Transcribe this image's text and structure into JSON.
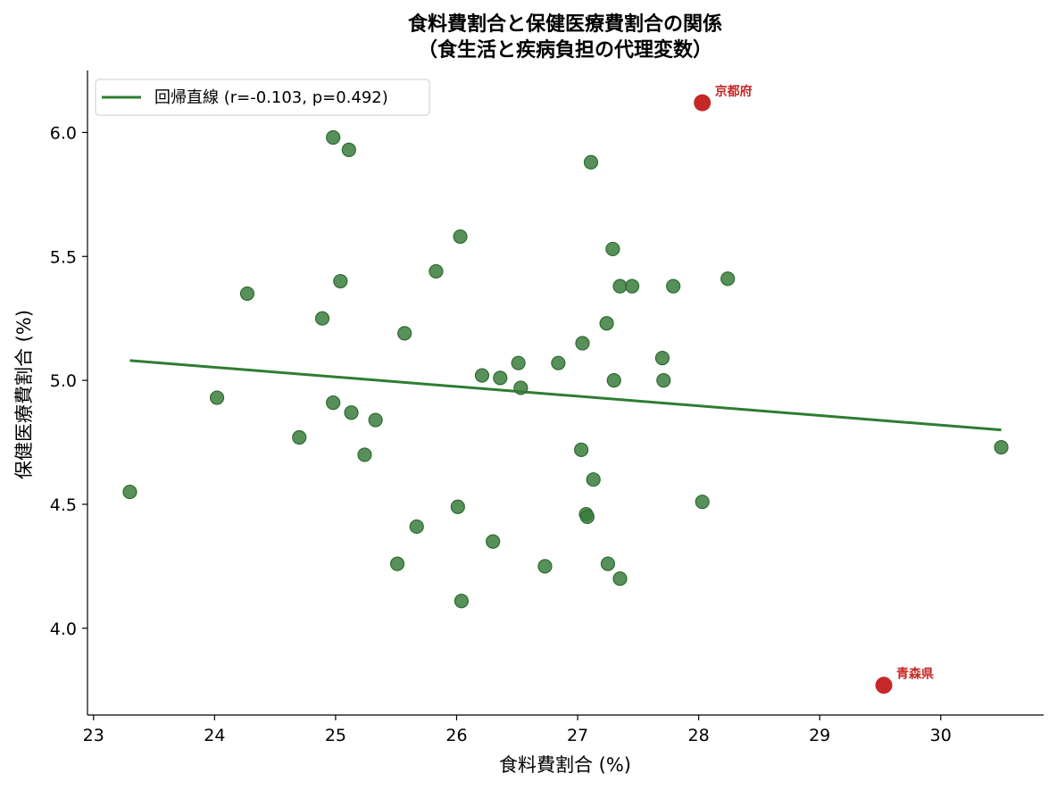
{
  "chart_data": {
    "type": "scatter",
    "title_line1": "食料費割合と保健医療費割合の関係",
    "title_line2": "（食生活と疾病負担の代理変数）",
    "xlabel": "食料費割合 (%)",
    "ylabel": "保健医療費割合 (%)",
    "xlim": [
      22.95,
      30.85
    ],
    "ylim": [
      3.65,
      6.25
    ],
    "xticks": [
      23,
      24,
      25,
      26,
      27,
      28,
      29,
      30
    ],
    "yticks": [
      4.0,
      4.5,
      5.0,
      5.5,
      6.0
    ],
    "ytick_labels": [
      "4.0",
      "4.5",
      "5.0",
      "5.5",
      "6.0"
    ],
    "grid": false,
    "legend_position": "top-left",
    "colors": {
      "points": "#3a7d3c",
      "line": "#2e7d32",
      "highlight": "#c62828"
    },
    "regression": {
      "label": "回帰直線 (r=-0.103, p=0.492)",
      "x": [
        23.3,
        30.5
      ],
      "y": [
        5.08,
        4.8
      ]
    },
    "points": [
      {
        "x": 23.3,
        "y": 4.55
      },
      {
        "x": 24.02,
        "y": 4.93
      },
      {
        "x": 24.27,
        "y": 5.35
      },
      {
        "x": 24.7,
        "y": 4.77
      },
      {
        "x": 24.89,
        "y": 5.25
      },
      {
        "x": 24.98,
        "y": 5.98
      },
      {
        "x": 24.98,
        "y": 4.91
      },
      {
        "x": 25.04,
        "y": 5.4
      },
      {
        "x": 25.11,
        "y": 5.93
      },
      {
        "x": 25.13,
        "y": 4.87
      },
      {
        "x": 25.24,
        "y": 4.7
      },
      {
        "x": 25.33,
        "y": 4.84
      },
      {
        "x": 25.51,
        "y": 4.26
      },
      {
        "x": 25.57,
        "y": 5.19
      },
      {
        "x": 25.67,
        "y": 4.41
      },
      {
        "x": 25.83,
        "y": 5.44
      },
      {
        "x": 26.01,
        "y": 4.49
      },
      {
        "x": 26.03,
        "y": 5.58
      },
      {
        "x": 26.04,
        "y": 4.11
      },
      {
        "x": 26.21,
        "y": 5.02
      },
      {
        "x": 26.3,
        "y": 4.35
      },
      {
        "x": 26.36,
        "y": 5.01
      },
      {
        "x": 26.51,
        "y": 5.07
      },
      {
        "x": 26.53,
        "y": 4.97
      },
      {
        "x": 26.73,
        "y": 4.25
      },
      {
        "x": 26.84,
        "y": 5.07
      },
      {
        "x": 27.03,
        "y": 4.72
      },
      {
        "x": 27.04,
        "y": 5.15
      },
      {
        "x": 27.07,
        "y": 4.46
      },
      {
        "x": 27.08,
        "y": 4.45
      },
      {
        "x": 27.11,
        "y": 5.88
      },
      {
        "x": 27.13,
        "y": 4.6
      },
      {
        "x": 27.24,
        "y": 5.23
      },
      {
        "x": 27.25,
        "y": 4.26
      },
      {
        "x": 27.29,
        "y": 5.53
      },
      {
        "x": 27.3,
        "y": 5.0
      },
      {
        "x": 27.35,
        "y": 5.38
      },
      {
        "x": 27.35,
        "y": 4.2
      },
      {
        "x": 27.45,
        "y": 5.38
      },
      {
        "x": 27.7,
        "y": 5.09
      },
      {
        "x": 27.71,
        "y": 5.0
      },
      {
        "x": 27.79,
        "y": 5.38
      },
      {
        "x": 28.03,
        "y": 4.51
      },
      {
        "x": 28.24,
        "y": 5.41
      },
      {
        "x": 30.5,
        "y": 4.73
      }
    ],
    "highlighted": [
      {
        "x": 28.03,
        "y": 6.12,
        "label": "京都府"
      },
      {
        "x": 29.53,
        "y": 3.77,
        "label": "青森県"
      }
    ]
  }
}
